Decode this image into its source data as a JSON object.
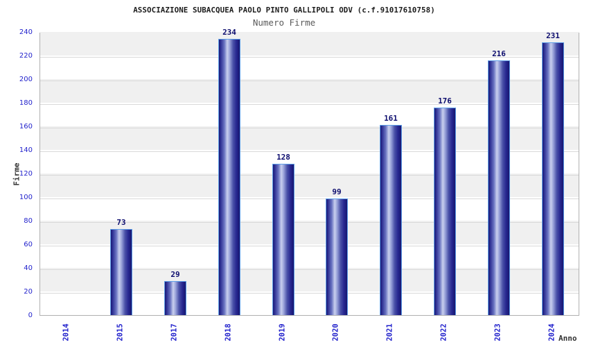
{
  "header": {
    "title": "ASSOCIAZIONE SUBACQUEA PAOLO PINTO GALLIPOLI ODV (c.f.91017610758)",
    "subtitle": "Numero Firme"
  },
  "chart_data": {
    "type": "bar",
    "title": "ASSOCIAZIONE SUBACQUEA PAOLO PINTO GALLIPOLI ODV (c.f.91017610758)",
    "subtitle": "Numero Firme",
    "categories": [
      "2014",
      "2015",
      "2017",
      "2018",
      "2019",
      "2020",
      "2021",
      "2022",
      "2023",
      "2024"
    ],
    "values": [
      0,
      73,
      29,
      234,
      128,
      99,
      161,
      176,
      216,
      231
    ],
    "xlabel": "Anno",
    "ylabel": "Firme",
    "ylim": [
      0,
      240
    ],
    "ytick_step": 20,
    "ytick_labels": [
      "0",
      "20",
      "40",
      "60",
      "80",
      "100",
      "120",
      "140",
      "160",
      "180",
      "200",
      "220",
      "240"
    ],
    "grid": true,
    "legend_position": "none",
    "banded_background": true,
    "colors": {
      "tick_text": "#2222cc",
      "value_label": "#0d0d6e",
      "title_text": "#1c1c1c",
      "subtitle_text": "#5a5a5a",
      "axis_label_text": "#333333",
      "band_gray": "#f0f0f0",
      "band_white": "#ffffff",
      "gridline": "#d9d9d9",
      "plot_border": "#b0b0b0",
      "bar_border": "#5f9fe8",
      "bar_gradient_stops": [
        [
          "#191975",
          "0%"
        ],
        [
          "#2e3093",
          "8%"
        ],
        [
          "#6a74c2",
          "26%"
        ],
        [
          "#c9d0ee",
          "40%"
        ],
        [
          "#97a0d8",
          "52%"
        ],
        [
          "#4a51a8",
          "68%"
        ],
        [
          "#26268f",
          "85%"
        ],
        [
          "#171770",
          "100%"
        ]
      ]
    }
  }
}
